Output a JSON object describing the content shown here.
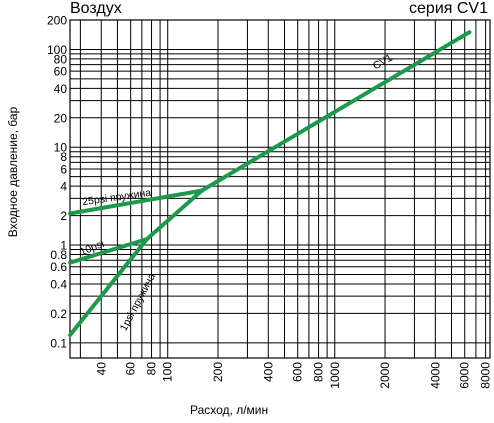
{
  "chart_data": {
    "type": "line",
    "title_left": "Воздух",
    "title_right": "серия CV1",
    "xlabel": "Расход, л/мин",
    "ylabel": "Входное давление, бар",
    "x_scale": "log",
    "y_scale": "log",
    "xlim": [
      26,
      8500
    ],
    "ylim": [
      0.07,
      200
    ],
    "x_ticks": [
      40,
      60,
      80,
      100,
      200,
      400,
      600,
      800,
      1000,
      2000,
      4000,
      6000,
      8000
    ],
    "y_ticks": [
      0.1,
      0.2,
      0.4,
      0.6,
      0.8,
      1,
      2,
      4,
      6,
      8,
      10,
      20,
      40,
      60,
      80,
      100,
      200
    ],
    "x_grid": [
      30,
      40,
      50,
      60,
      70,
      80,
      90,
      100,
      200,
      300,
      400,
      500,
      600,
      700,
      800,
      900,
      1000,
      2000,
      3000,
      4000,
      5000,
      6000,
      7000,
      8000
    ],
    "y_grid": [
      0.1,
      0.2,
      0.3,
      0.4,
      0.5,
      0.6,
      0.7,
      0.8,
      0.9,
      1,
      2,
      3,
      4,
      5,
      6,
      7,
      8,
      9,
      10,
      20,
      30,
      40,
      50,
      60,
      70,
      80,
      90,
      100,
      200
    ],
    "grid": true,
    "line_color": "#1a9a4a",
    "series": [
      {
        "name": "CV1",
        "x": [
          160,
          6400
        ],
        "y": [
          3.6,
          150
        ]
      },
      {
        "name": "25psi пружина",
        "x": [
          26,
          160
        ],
        "y": [
          2.1,
          3.6
        ]
      },
      {
        "name": "10psi",
        "x": [
          26,
          75
        ],
        "y": [
          0.66,
          1.15
        ]
      },
      {
        "name": "1psi пружина",
        "x": [
          26,
          75,
          160
        ],
        "y": [
          0.12,
          1.15,
          3.6
        ]
      }
    ],
    "annotations": [
      {
        "text": "CV1",
        "series": "CV1"
      },
      {
        "text": "25psi пружина",
        "series": "25psi пружина"
      },
      {
        "text": "10psi",
        "series": "10psi"
      },
      {
        "text": "1psi пружина",
        "series": "1psi пружина"
      }
    ]
  }
}
